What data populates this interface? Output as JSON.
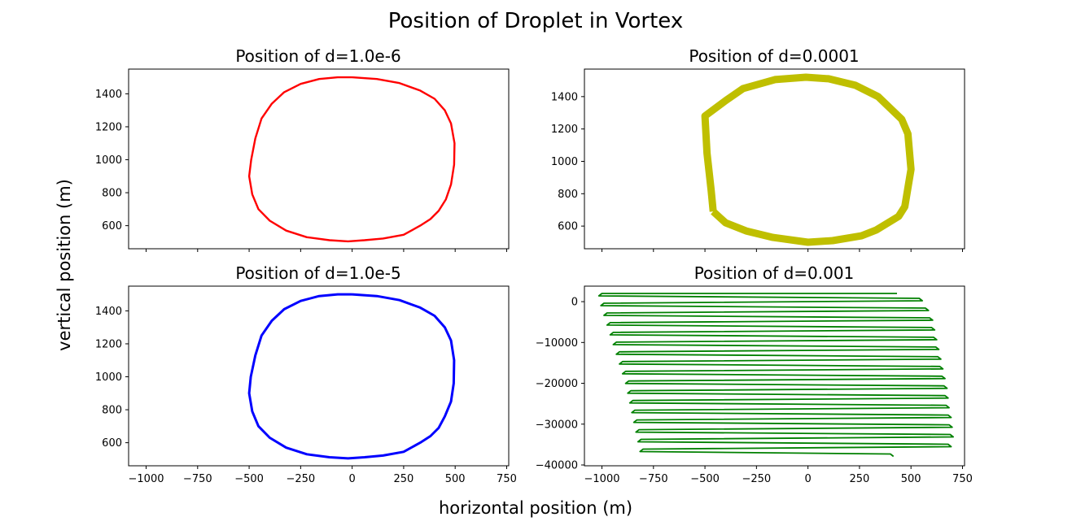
{
  "figure": {
    "title": "Position of Droplet in Vortex",
    "xlabel": "horizontal position (m)",
    "ylabel": "vertical position (m)"
  },
  "chart_data": [
    {
      "type": "line",
      "title": "Position of d=1.0e-6",
      "color": "#ff0000",
      "xlim": [
        -1085,
        760
      ],
      "ylim": [
        460,
        1550
      ],
      "xticks": [
        -1000,
        -750,
        -500,
        -250,
        0,
        250,
        500,
        750
      ],
      "yticks": [
        600,
        800,
        1000,
        1200,
        1400
      ],
      "show_xticklabels": false,
      "line_width": 2.4,
      "shape": "closed_orbit",
      "series": [
        {
          "x": [
            0,
            120,
            230,
            330,
            400,
            450,
            480,
            497,
            495,
            480,
            455,
            420,
            380,
            330,
            250,
            150,
            60,
            -20,
            -110,
            -220,
            -320,
            -400,
            -455,
            -485,
            -500,
            -490,
            -470,
            -440,
            -390,
            -330,
            -250,
            -160,
            -70,
            0
          ],
          "y": [
            1500,
            1490,
            1465,
            1420,
            1370,
            1300,
            1220,
            1100,
            970,
            850,
            760,
            690,
            640,
            600,
            545,
            522,
            512,
            505,
            512,
            530,
            570,
            630,
            700,
            790,
            900,
            1000,
            1130,
            1250,
            1340,
            1410,
            1460,
            1490,
            1500,
            1500
          ]
        }
      ]
    },
    {
      "type": "line",
      "title": "Position of d=0.0001",
      "color": "#bfbf00",
      "xlim": [
        -1085,
        760
      ],
      "ylim": [
        460,
        1570
      ],
      "xticks": [
        -1000,
        -750,
        -500,
        -250,
        0,
        250,
        500,
        750
      ],
      "yticks": [
        600,
        800,
        1000,
        1200,
        1400
      ],
      "show_xticklabels": false,
      "line_width": 9,
      "shape": "closed_orbit",
      "series": [
        {
          "x": [
            -460,
            -400,
            -300,
            -170,
            0,
            120,
            260,
            330,
            440,
            470,
            500,
            485,
            455,
            340,
            230,
            100,
            -10,
            -160,
            -315,
            -400,
            -500,
            -490,
            -470,
            -460
          ],
          "y": [
            690,
            620,
            570,
            530,
            500,
            510,
            540,
            575,
            660,
            720,
            950,
            1170,
            1260,
            1400,
            1470,
            1510,
            1520,
            1505,
            1450,
            1375,
            1280,
            1050,
            820,
            690
          ]
        }
      ]
    },
    {
      "type": "line",
      "title": "Position of d=1.0e-5",
      "color": "#0000ff",
      "xlim": [
        -1085,
        760
      ],
      "ylim": [
        460,
        1550
      ],
      "xticks": [
        -1000,
        -750,
        -500,
        -250,
        0,
        250,
        500,
        750
      ],
      "yticks": [
        600,
        800,
        1000,
        1200,
        1400
      ],
      "xtick_labels": [
        "−1000",
        "−750",
        "−500",
        "−250",
        "0",
        "250",
        "500",
        "750"
      ],
      "show_xticklabels": true,
      "line_width": 3,
      "shape": "closed_orbit",
      "series": [
        {
          "x": [
            0,
            120,
            230,
            330,
            400,
            450,
            480,
            495,
            493,
            480,
            450,
            420,
            380,
            330,
            250,
            150,
            60,
            -20,
            -110,
            -220,
            -320,
            -400,
            -455,
            -485,
            -500,
            -492,
            -470,
            -440,
            -390,
            -330,
            -250,
            -160,
            -70,
            0
          ],
          "y": [
            1500,
            1490,
            1465,
            1420,
            1370,
            1300,
            1220,
            1100,
            960,
            850,
            760,
            690,
            640,
            600,
            545,
            522,
            512,
            505,
            512,
            530,
            570,
            630,
            700,
            790,
            900,
            1000,
            1130,
            1250,
            1340,
            1410,
            1460,
            1490,
            1500,
            1500
          ]
        }
      ]
    },
    {
      "type": "line",
      "title": "Position of d=0.001",
      "color": "#008000",
      "xlim": [
        -1085,
        760
      ],
      "ylim": [
        -40200,
        3800
      ],
      "xticks": [
        -1000,
        -750,
        -500,
        -250,
        0,
        250,
        500,
        750
      ],
      "yticks": [
        -40000,
        -30000,
        -20000,
        -10000,
        0
      ],
      "xtick_labels": [
        "−1000",
        "−750",
        "−500",
        "−250",
        "0",
        "250",
        "500",
        "750"
      ],
      "ytick_labels": [
        "−40000",
        "−30000",
        "−20000",
        "−10000",
        "0"
      ],
      "show_xticklabels": true,
      "line_width": 1.8,
      "shape": "zigzag",
      "series": [
        {
          "left_x": [
            -1000,
            -990,
            -975,
            -960,
            -945,
            -930,
            -915,
            -900,
            -885,
            -870,
            -860,
            -850,
            -840,
            -830,
            -820,
            -810,
            -800
          ],
          "right_x": [
            540,
            570,
            590,
            600,
            610,
            620,
            630,
            640,
            650,
            660,
            665,
            670,
            680,
            685,
            690,
            680,
            400
          ],
          "y_top": 2000,
          "y_bottom": -38500
        }
      ]
    }
  ]
}
